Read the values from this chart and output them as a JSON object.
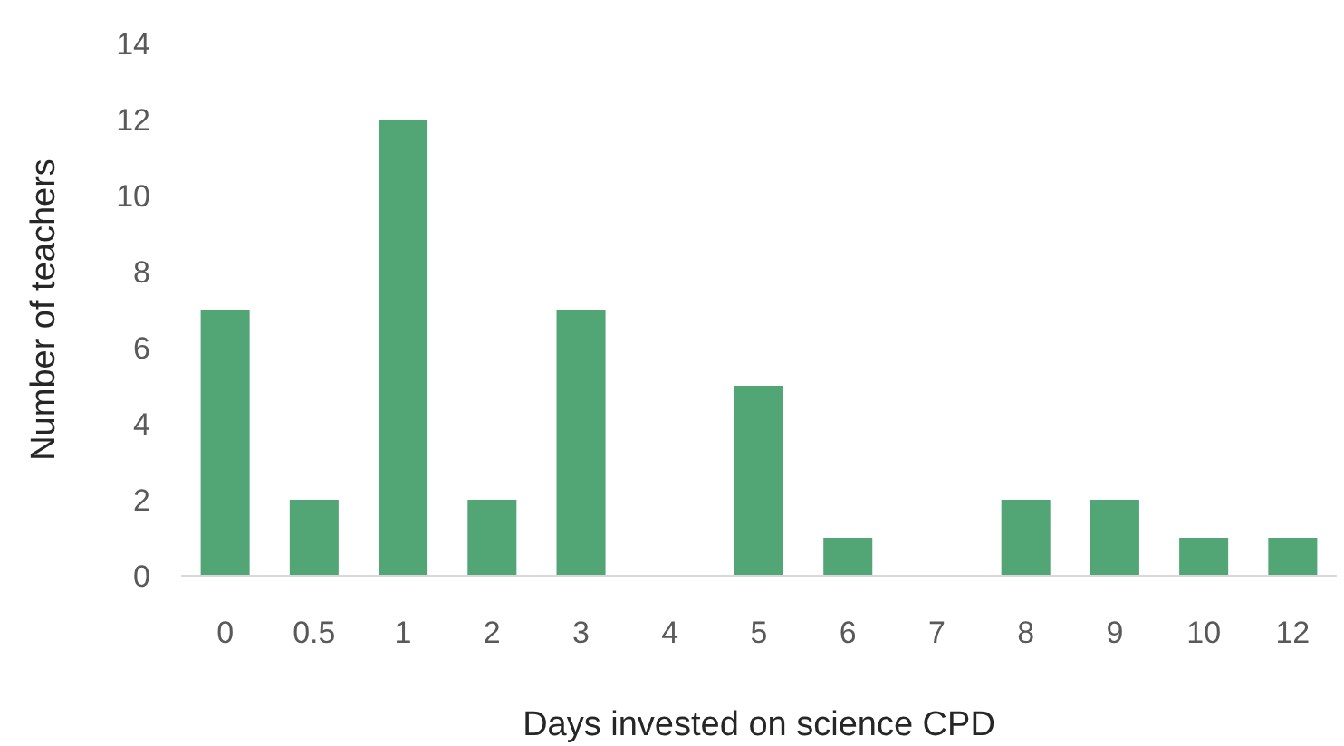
{
  "chart_data": {
    "type": "bar",
    "xlabel": "Days invested on science CPD",
    "ylabel": "Number of teachers",
    "categories": [
      "0",
      "0.5",
      "1",
      "2",
      "3",
      "4",
      "5",
      "6",
      "7",
      "8",
      "9",
      "10",
      "12"
    ],
    "values": [
      7,
      2,
      12,
      2,
      7,
      0,
      5,
      1,
      0,
      2,
      2,
      1,
      1
    ],
    "color": "#52a675",
    "ylim": [
      0,
      14
    ],
    "yticks": [
      0,
      2,
      4,
      6,
      8,
      10,
      12,
      14
    ],
    "grid": false
  }
}
